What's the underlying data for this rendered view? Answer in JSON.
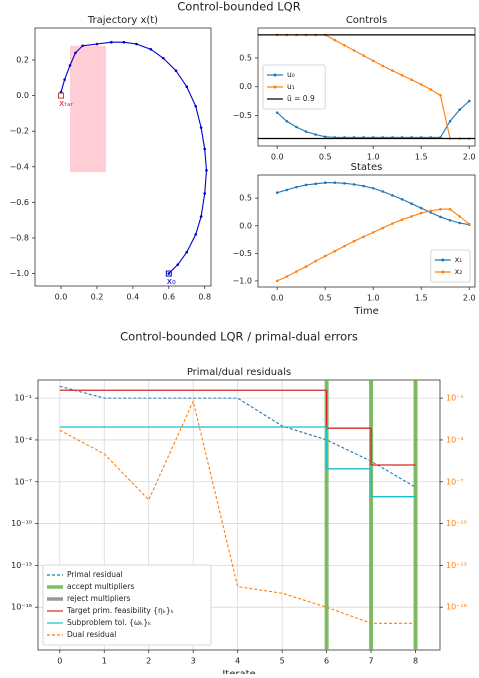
{
  "figure_1": {
    "title": "Control-bounded LQR"
  },
  "figure_2": {
    "title": "Control-bounded LQR / primal-dual errors"
  },
  "chart_data": [
    {
      "type": "line",
      "title": "Trajectory x(t)",
      "xlim": [
        -0.145,
        0.835
      ],
      "ylim": [
        -1.07,
        0.38
      ],
      "xticks": [
        {
          "value": 0.0,
          "label": "0.0"
        },
        {
          "value": 0.2,
          "label": "0.2"
        },
        {
          "value": 0.4,
          "label": "0.4"
        },
        {
          "value": 0.6,
          "label": "0.6"
        },
        {
          "value": 0.8,
          "label": "0.8"
        }
      ],
      "yticks": [
        {
          "value": -1.0,
          "label": "−1.0"
        },
        {
          "value": -0.8,
          "label": "−0.8"
        },
        {
          "value": -0.6,
          "label": "−0.6"
        },
        {
          "value": -0.4,
          "label": "−0.4"
        },
        {
          "value": -0.2,
          "label": "−0.2"
        },
        {
          "value": 0.0,
          "label": "0.0"
        },
        {
          "value": 0.2,
          "label": "0.2"
        }
      ],
      "region": {
        "color": "#ffc0cb",
        "x": [
          0.05,
          0.25
        ],
        "y": [
          -0.43,
          0.28
        ]
      },
      "series": [
        {
          "color": "#0000cc",
          "marker": true,
          "x": [
            0.6,
            0.65,
            0.7,
            0.75,
            0.78,
            0.8,
            0.81,
            0.8,
            0.78,
            0.75,
            0.7,
            0.64,
            0.57,
            0.5,
            0.42,
            0.35,
            0.28,
            0.2,
            0.12,
            0.08,
            0.05,
            0.02,
            0.0
          ],
          "values": [
            -1.0,
            -0.95,
            -0.88,
            -0.78,
            -0.68,
            -0.55,
            -0.42,
            -0.3,
            -0.18,
            -0.06,
            0.05,
            0.14,
            0.21,
            0.26,
            0.29,
            0.3,
            0.3,
            0.29,
            0.28,
            0.24,
            0.17,
            0.09,
            0.02
          ]
        }
      ],
      "annotations": [
        {
          "text": "x₀",
          "x": 0.6,
          "y": -1.0,
          "color": "#0000cc"
        },
        {
          "text": "xₜₐᵣ",
          "x": 0.0,
          "y": 0.0,
          "color": "#cc3333"
        }
      ]
    },
    {
      "type": "line",
      "title": "Controls",
      "xlim": [
        -0.2,
        2.06
      ],
      "ylim": [
        -1.03,
        1.02
      ],
      "xticks": [
        {
          "value": 0.0,
          "label": "0.0"
        },
        {
          "value": 0.5,
          "label": "0.5"
        },
        {
          "value": 1.0,
          "label": "1.0"
        },
        {
          "value": 1.5,
          "label": "1.5"
        },
        {
          "value": 2.0,
          "label": "2.0"
        }
      ],
      "yticks": [
        {
          "value": -0.5,
          "label": "−0.5"
        },
        {
          "value": 0.0,
          "label": "0.0"
        },
        {
          "value": 0.5,
          "label": "0.5"
        }
      ],
      "x": [
        0.0,
        0.1,
        0.2,
        0.3,
        0.4,
        0.5,
        0.6,
        0.7,
        0.8,
        0.9,
        1.0,
        1.1,
        1.2,
        1.3,
        1.4,
        1.5,
        1.6,
        1.7,
        1.8,
        1.9,
        2.0
      ],
      "legend": "center left",
      "series": [
        {
          "name": "u₀",
          "color": "#1f77b4",
          "marker": true,
          "values": [
            -0.45,
            -0.6,
            -0.7,
            -0.78,
            -0.83,
            -0.87,
            -0.88,
            -0.88,
            -0.88,
            -0.88,
            -0.88,
            -0.88,
            -0.88,
            -0.88,
            -0.88,
            -0.88,
            -0.88,
            -0.88,
            -0.6,
            -0.4,
            -0.25
          ]
        },
        {
          "name": "u₁",
          "color": "#ff7f0e",
          "marker": true,
          "values": [
            0.9,
            0.9,
            0.9,
            0.9,
            0.9,
            0.9,
            0.81,
            0.72,
            0.63,
            0.54,
            0.45,
            0.36,
            0.28,
            0.2,
            0.12,
            0.04,
            -0.05,
            -0.15,
            -0.9,
            -0.9,
            -0.9
          ]
        },
        {
          "name": "ū = 0.9",
          "color": "#000000",
          "hlines": [
            0.9,
            -0.9
          ]
        }
      ]
    },
    {
      "type": "line",
      "title": "States",
      "xlabel": "Time",
      "xlim": [
        -0.2,
        2.06
      ],
      "ylim": [
        -1.11,
        0.92
      ],
      "xticks": [
        {
          "value": 0.0,
          "label": "0.0"
        },
        {
          "value": 0.5,
          "label": "0.5"
        },
        {
          "value": 1.0,
          "label": "1.0"
        },
        {
          "value": 1.5,
          "label": "1.5"
        },
        {
          "value": 2.0,
          "label": "2.0"
        }
      ],
      "yticks": [
        {
          "value": -1.0,
          "label": "−1.0"
        },
        {
          "value": -0.5,
          "label": "−0.5"
        },
        {
          "value": 0.0,
          "label": "0.0"
        },
        {
          "value": 0.5,
          "label": "0.5"
        }
      ],
      "x": [
        0.0,
        0.1,
        0.2,
        0.3,
        0.4,
        0.5,
        0.6,
        0.7,
        0.8,
        0.9,
        1.0,
        1.1,
        1.2,
        1.3,
        1.4,
        1.5,
        1.6,
        1.7,
        1.8,
        1.9,
        2.0
      ],
      "legend": "lower right",
      "series": [
        {
          "name": "x₁",
          "color": "#1f77b4",
          "marker": true,
          "values": [
            0.6,
            0.65,
            0.7,
            0.74,
            0.76,
            0.78,
            0.78,
            0.77,
            0.75,
            0.72,
            0.68,
            0.62,
            0.55,
            0.48,
            0.4,
            0.32,
            0.24,
            0.16,
            0.1,
            0.05,
            0.02
          ]
        },
        {
          "name": "x₂",
          "color": "#ff7f0e",
          "marker": true,
          "values": [
            -1.0,
            -0.92,
            -0.83,
            -0.74,
            -0.64,
            -0.55,
            -0.46,
            -0.37,
            -0.28,
            -0.2,
            -0.12,
            -0.04,
            0.04,
            0.11,
            0.17,
            0.23,
            0.27,
            0.3,
            0.3,
            0.17,
            0.03
          ]
        }
      ]
    },
    {
      "type": "line",
      "title": "Primal/dual residuals",
      "xlabel": "Iterate",
      "yscale": "log",
      "grid": true,
      "xlim": [
        -0.49,
        8.55
      ],
      "ylim": [
        8.5e-20,
        2
      ],
      "y2lim": [
        8.5e-20,
        2
      ],
      "xticks": [
        0,
        1,
        2,
        3,
        4,
        5,
        6,
        7,
        8
      ],
      "yticks": [
        {
          "value": 1e-16,
          "label": "10⁻¹⁶"
        },
        {
          "value": 1e-13,
          "label": "10⁻¹³"
        },
        {
          "value": 1e-10,
          "label": "10⁻¹⁰"
        },
        {
          "value": 1e-07,
          "label": "10⁻⁷"
        },
        {
          "value": 0.0001,
          "label": "10⁻⁴"
        },
        {
          "value": 0.1,
          "label": "10⁻¹"
        }
      ],
      "y2ticks": [
        {
          "value": 1e-16,
          "label": "10⁻¹⁶"
        },
        {
          "value": 1e-13,
          "label": "10⁻¹³"
        },
        {
          "value": 1e-10,
          "label": "10⁻¹⁰"
        },
        {
          "value": 1e-07,
          "label": "10⁻⁷"
        },
        {
          "value": 0.0001,
          "label": "10⁻⁴"
        },
        {
          "value": 0.1,
          "label": "10⁻¹"
        }
      ],
      "y2_tick_color": "#ff7f0e",
      "x": [
        0,
        1,
        2,
        3,
        4,
        5,
        6,
        7,
        8
      ],
      "legend": "lower left",
      "series": [
        {
          "name": "Primal residual",
          "color": "#1f77b4",
          "dash": true,
          "values": [
            0.7,
            0.1,
            0.1,
            0.1,
            0.1,
            0.001,
            0.0001,
            3e-06,
            4e-08
          ]
        },
        {
          "name": "accept multipliers",
          "color": "#6ab04c",
          "vlines": [
            6,
            7,
            8
          ]
        },
        {
          "name": "reject multipliers",
          "color": "#888888",
          "vlines": []
        },
        {
          "name": "Target prim. feasibility {ηₖ}ₖ",
          "color": "#d62728",
          "step": true,
          "values": [
            0.37,
            0.37,
            0.37,
            0.37,
            0.37,
            0.37,
            0.0007,
            1.6e-06,
            1.6e-06
          ]
        },
        {
          "name": "Subproblem tol. {ωₖ}ₖ",
          "color": "#17becf",
          "step": true,
          "values": [
            0.00085,
            0.00085,
            0.00085,
            0.00085,
            0.00085,
            0.00085,
            8.5e-07,
            8.5e-09,
            8.5e-09
          ]
        },
        {
          "name": "Dual residual",
          "color": "#ff7f0e",
          "dash": true,
          "axis": "y2",
          "values": [
            0.0005,
            1e-05,
            5e-09,
            0.06,
            3e-15,
            1e-15,
            1e-16,
            7e-18,
            7e-18
          ]
        }
      ]
    }
  ]
}
